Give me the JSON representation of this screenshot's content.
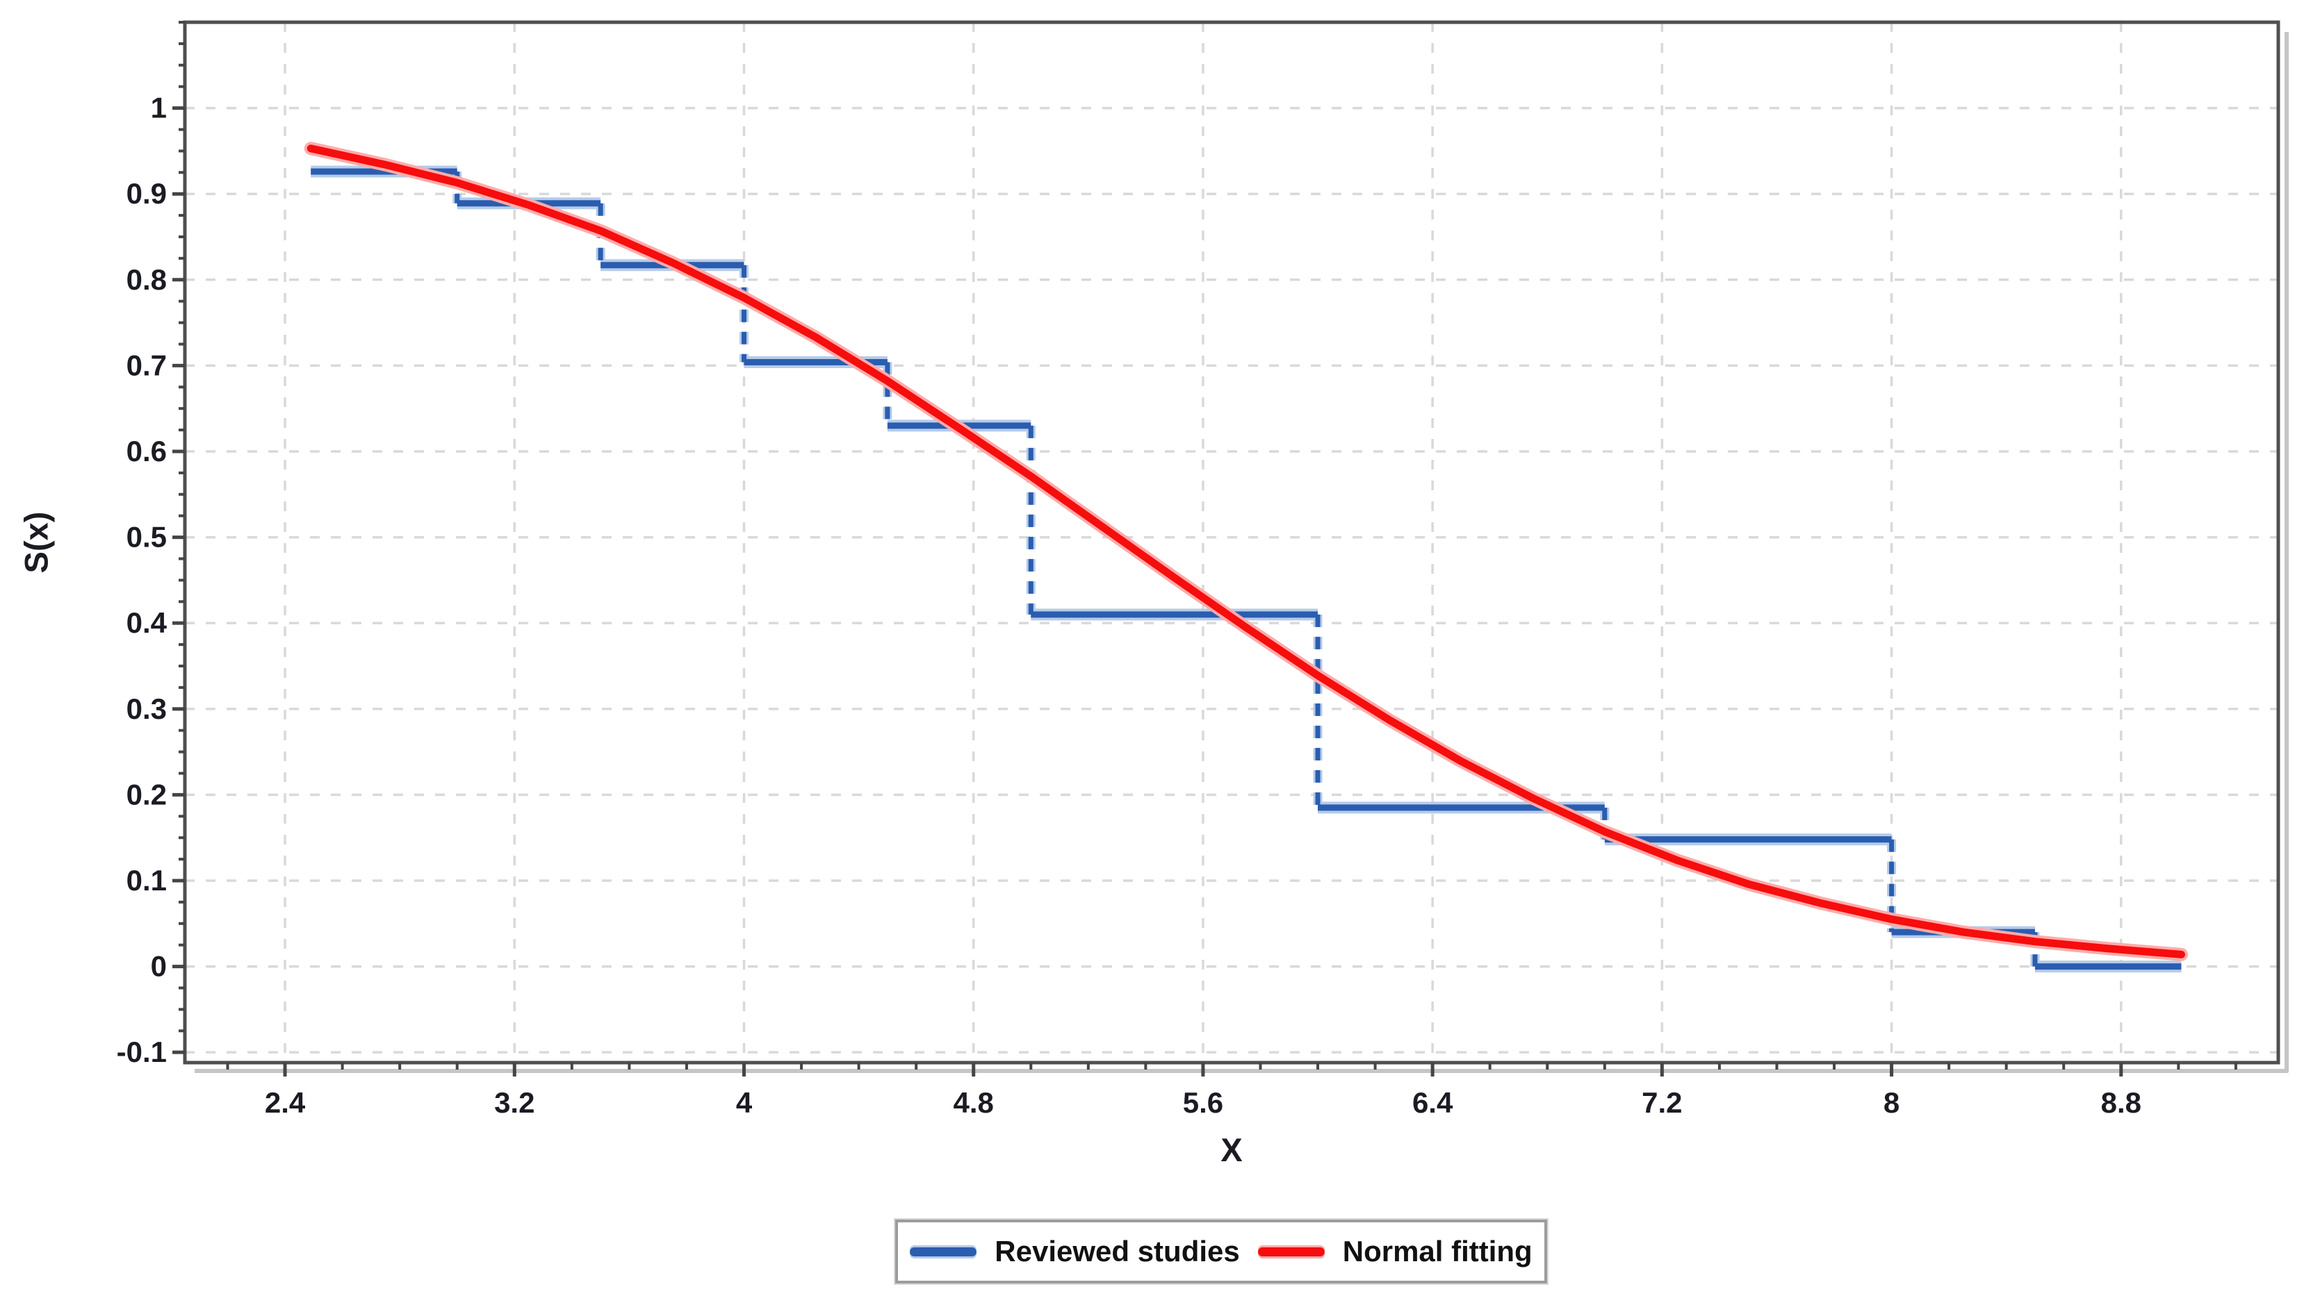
{
  "figure": {
    "background": "#ffffff",
    "frame_color": "#4f4f4f",
    "shadow_color": "#c6c6c6",
    "grid_color": "#d9d9d9",
    "tick_color": "#454545",
    "text_color": "#1b1b24"
  },
  "chart_data": {
    "type": "line",
    "subtype": "survival-step-with-normal-fit",
    "title": "",
    "xlabel": "X",
    "ylabel": "S(x)",
    "xlim": [
      2.051,
      9.348
    ],
    "ylim": [
      -0.112,
      1.1
    ],
    "grid": "dashed-on-major-ticks",
    "x_major_ticks": [
      2.4,
      3.2,
      4,
      4.8,
      5.6,
      6.4,
      7.2,
      8,
      8.8
    ],
    "x_major_tick_labels": [
      "2.4",
      "3.2",
      "4",
      "4.8",
      "5.6",
      "6.4",
      "7.2",
      "8",
      "8.8"
    ],
    "x_minor_tick_step": 0.2,
    "y_major_ticks": [
      -0.1,
      0,
      0.1,
      0.2,
      0.3,
      0.4,
      0.5,
      0.6,
      0.7,
      0.8,
      0.9,
      1
    ],
    "y_major_tick_labels": [
      "-0.1",
      "0",
      "0.1",
      "0.2",
      "0.3",
      "0.4",
      "0.5",
      "0.6",
      "0.7",
      "0.8",
      "0.9",
      "1"
    ],
    "y_minor_tick_step": 0.025,
    "legend": {
      "position": "bottom-center",
      "border": true
    },
    "series": [
      {
        "name": "Reviewed studies",
        "type": "step",
        "color": "#2a5db0",
        "halo_color": "#b5cbe9",
        "connector_style": "dashed",
        "step_points": [
          [
            2.49,
            0.926
          ],
          [
            3.0,
            0.889
          ],
          [
            3.5,
            0.817
          ],
          [
            4.0,
            0.704
          ],
          [
            4.5,
            0.63
          ],
          [
            5.0,
            0.41
          ],
          [
            6.0,
            0.185
          ],
          [
            7.0,
            0.148
          ],
          [
            8.0,
            0.04
          ],
          [
            8.5,
            0.0
          ]
        ],
        "end_x": 9.01
      },
      {
        "name": "Normal fitting",
        "type": "line",
        "color": "#f60d0d",
        "halo_color": "#ffabab",
        "fit": {
          "distribution": "normal",
          "mean": 5.3,
          "sd": 1.69
        },
        "points": [
          [
            2.49,
            0.953
          ],
          [
            2.75,
            0.934
          ],
          [
            3.0,
            0.913
          ],
          [
            3.25,
            0.887
          ],
          [
            3.5,
            0.857
          ],
          [
            3.75,
            0.82
          ],
          [
            4.0,
            0.779
          ],
          [
            4.25,
            0.733
          ],
          [
            4.5,
            0.682
          ],
          [
            4.75,
            0.627
          ],
          [
            5.0,
            0.571
          ],
          [
            5.25,
            0.512
          ],
          [
            5.5,
            0.453
          ],
          [
            5.75,
            0.395
          ],
          [
            6.0,
            0.339
          ],
          [
            6.25,
            0.287
          ],
          [
            6.5,
            0.239
          ],
          [
            6.75,
            0.196
          ],
          [
            7.0,
            0.157
          ],
          [
            7.25,
            0.124
          ],
          [
            7.5,
            0.096
          ],
          [
            7.75,
            0.074
          ],
          [
            8.0,
            0.055
          ],
          [
            8.25,
            0.04
          ],
          [
            8.5,
            0.029
          ],
          [
            8.75,
            0.021
          ],
          [
            9.01,
            0.014
          ]
        ]
      }
    ]
  }
}
